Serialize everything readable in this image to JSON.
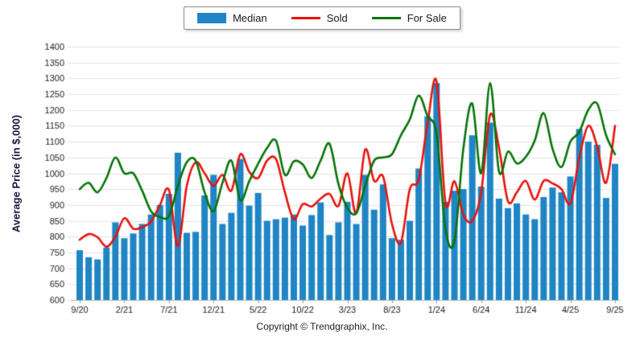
{
  "legend": {
    "items": [
      {
        "label": "Median",
        "type": "bar",
        "color": "#1f85c4"
      },
      {
        "label": "Sold",
        "type": "line",
        "color": "#e8120c"
      },
      {
        "label": "For Sale",
        "type": "line",
        "color": "#077307"
      }
    ]
  },
  "y_axis": {
    "title": "Average Price (in $,000)"
  },
  "footer": {
    "copyright": "Copyright © Trendgraphix, Inc."
  },
  "chart_data": {
    "type": "bar+line",
    "title": "",
    "xlabel": "",
    "ylabel": "Average Price (in $,000)",
    "ylim": [
      600,
      1400
    ],
    "y_step": 50,
    "grid": true,
    "legend_position": "top-center",
    "x_tick_every": 5,
    "categories": [
      "9/20",
      "10/20",
      "11/20",
      "12/20",
      "1/21",
      "2/21",
      "3/21",
      "4/21",
      "5/21",
      "6/21",
      "7/21",
      "8/21",
      "9/21",
      "10/21",
      "11/21",
      "12/21",
      "1/22",
      "2/22",
      "3/22",
      "4/22",
      "5/22",
      "6/22",
      "7/22",
      "8/22",
      "9/22",
      "10/22",
      "11/22",
      "12/22",
      "1/23",
      "2/23",
      "3/23",
      "4/23",
      "5/23",
      "6/23",
      "7/23",
      "8/23",
      "9/23",
      "10/23",
      "11/23",
      "12/23",
      "1/24",
      "2/24",
      "3/24",
      "4/24",
      "5/24",
      "6/24",
      "7/24",
      "8/24",
      "9/24",
      "10/24",
      "11/24",
      "12/24",
      "1/25",
      "2/25",
      "3/25",
      "4/25",
      "5/25",
      "6/25",
      "7/25",
      "8/25",
      "9/25"
    ],
    "x_tick_labels": [
      "9/20",
      "2/21",
      "7/21",
      "12/21",
      "5/22",
      "10/22",
      "3/23",
      "8/23",
      "1/24",
      "6/24",
      "11/24",
      "4/25",
      "9/25"
    ],
    "series": [
      {
        "name": "Median",
        "type": "bar",
        "color": "#1f85c4",
        "values": [
          757,
          735,
          728,
          765,
          845,
          795,
          810,
          840,
          870,
          900,
          935,
          1065,
          812,
          815,
          930,
          995,
          840,
          875,
          1045,
          898,
          938,
          850,
          855,
          860,
          870,
          835,
          868,
          908,
          805,
          845,
          910,
          840,
          995,
          885,
          965,
          795,
          790,
          850,
          1015,
          1180,
          1285,
          910,
          945,
          950,
          1120,
          958,
          1160,
          920,
          890,
          905,
          870,
          855,
          925,
          955,
          940,
          990,
          1140,
          1100,
          1090,
          922,
          1030
        ]
      },
      {
        "name": "Sold",
        "type": "line",
        "color": "#e8120c",
        "values": [
          790,
          808,
          798,
          768,
          800,
          858,
          825,
          830,
          848,
          900,
          948,
          770,
          960,
          1035,
          1000,
          960,
          995,
          945,
          1060,
          1005,
          985,
          1040,
          1045,
          940,
          855,
          903,
          895,
          920,
          935,
          897,
          1000,
          874,
          1075,
          976,
          990,
          840,
          781,
          950,
          980,
          1160,
          1290,
          905,
          975,
          870,
          850,
          940,
          1185,
          1080,
          912,
          940,
          976,
          917,
          976,
          968,
          950,
          905,
          1050,
          1150,
          1085,
          970,
          1150
        ]
      },
      {
        "name": "For Sale",
        "type": "line",
        "color": "#077307",
        "values": [
          950,
          970,
          940,
          985,
          1050,
          1000,
          1000,
          945,
          880,
          862,
          865,
          960,
          1035,
          1040,
          940,
          880,
          970,
          1040,
          915,
          975,
          1030,
          1080,
          1103,
          995,
          1038,
          1028,
          985,
          1040,
          1093,
          966,
          891,
          874,
          960,
          1040,
          1050,
          1060,
          1120,
          1170,
          1245,
          1180,
          1124,
          823,
          786,
          1077,
          1220,
          1000,
          1285,
          1005,
          1069,
          1031,
          1052,
          1103,
          1190,
          1077,
          1020,
          1100,
          1131,
          1200,
          1220,
          1120,
          1060
        ]
      }
    ]
  }
}
